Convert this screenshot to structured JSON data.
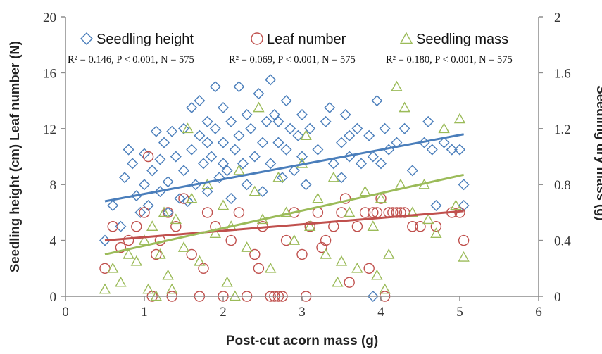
{
  "chart_data": {
    "type": "scatter",
    "title": "",
    "xlabel": "Post-cut acorn mass (g)",
    "ylabel_left": "Seedling height (cm) Leaf number (N)",
    "ylabel_right": "Seedling dry mass (g)",
    "xlim": [
      0,
      6
    ],
    "ylim_left": [
      0,
      20
    ],
    "ylim_right": [
      0,
      2
    ],
    "x_ticks": [
      "0",
      "1",
      "2",
      "3",
      "4",
      "5",
      "6"
    ],
    "y_left_ticks": [
      "0",
      "4",
      "8",
      "12",
      "16",
      "20"
    ],
    "y_right_ticks": [
      "0",
      "0.4",
      "0.8",
      "1.2",
      "1.6",
      "2"
    ],
    "legend_position": "top",
    "series": [
      {
        "name": "Seedling height",
        "axis": "left",
        "marker": "diamond",
        "color": "#4a7ebb",
        "stats": "R² = 0.146, P < 0.001, N = 575",
        "trend": {
          "x0": 0.5,
          "y0": 6.8,
          "x1": 5.05,
          "y1": 11.6
        },
        "points": [
          [
            0.5,
            4.0
          ],
          [
            0.6,
            6.5
          ],
          [
            0.7,
            5.0
          ],
          [
            0.75,
            8.5
          ],
          [
            0.8,
            10.5
          ],
          [
            0.85,
            9.5
          ],
          [
            0.9,
            7.2
          ],
          [
            0.95,
            6.0
          ],
          [
            1.0,
            10.2
          ],
          [
            1.0,
            8.0
          ],
          [
            1.05,
            6.5
          ],
          [
            1.1,
            9.0
          ],
          [
            1.15,
            11.8
          ],
          [
            1.2,
            7.5
          ],
          [
            1.2,
            9.8
          ],
          [
            1.25,
            11.0
          ],
          [
            1.3,
            8.2
          ],
          [
            1.35,
            11.8
          ],
          [
            1.4,
            10.0
          ],
          [
            1.45,
            7.0
          ],
          [
            1.5,
            12.0
          ],
          [
            1.5,
            9.0
          ],
          [
            1.55,
            6.8
          ],
          [
            1.6,
            13.5
          ],
          [
            1.6,
            10.5
          ],
          [
            1.65,
            8.0
          ],
          [
            1.7,
            14.0
          ],
          [
            1.7,
            11.5
          ],
          [
            1.75,
            9.5
          ],
          [
            1.8,
            12.5
          ],
          [
            1.8,
            7.5
          ],
          [
            1.85,
            10.0
          ],
          [
            1.9,
            15.0
          ],
          [
            1.9,
            12.0
          ],
          [
            1.95,
            8.5
          ],
          [
            2.0,
            13.5
          ],
          [
            2.0,
            11.0
          ],
          [
            2.05,
            9.0
          ],
          [
            2.1,
            12.5
          ],
          [
            2.1,
            7.0
          ],
          [
            2.15,
            10.5
          ],
          [
            2.2,
            15.0
          ],
          [
            2.2,
            11.5
          ],
          [
            2.25,
            9.5
          ],
          [
            2.3,
            13.0
          ],
          [
            2.3,
            8.0
          ],
          [
            2.35,
            12.0
          ],
          [
            2.4,
            10.0
          ],
          [
            2.45,
            14.5
          ],
          [
            2.5,
            11.0
          ],
          [
            2.5,
            7.5
          ],
          [
            2.55,
            12.5
          ],
          [
            2.6,
            15.5
          ],
          [
            2.6,
            9.5
          ],
          [
            2.65,
            13.0
          ],
          [
            2.7,
            11.0
          ],
          [
            2.75,
            8.5
          ],
          [
            2.8,
            14.0
          ],
          [
            2.8,
            10.5
          ],
          [
            2.85,
            12.0
          ],
          [
            2.9,
            9.0
          ],
          [
            2.95,
            11.5
          ],
          [
            3.0,
            13.0
          ],
          [
            3.0,
            10.0
          ],
          [
            3.05,
            8.0
          ],
          [
            3.1,
            12.0
          ],
          [
            3.2,
            10.5
          ],
          [
            3.3,
            12.5
          ],
          [
            3.35,
            13.5
          ],
          [
            3.4,
            9.5
          ],
          [
            3.5,
            11.0
          ],
          [
            3.55,
            13.0
          ],
          [
            3.6,
            10.0
          ],
          [
            3.7,
            12.0
          ],
          [
            3.75,
            9.5
          ],
          [
            3.85,
            11.5
          ],
          [
            3.9,
            10.0
          ],
          [
            3.95,
            14.0
          ],
          [
            4.0,
            9.5
          ],
          [
            4.05,
            12.0
          ],
          [
            4.1,
            10.5
          ],
          [
            4.2,
            11.0
          ],
          [
            4.3,
            12.0
          ],
          [
            4.4,
            9.0
          ],
          [
            4.55,
            11.0
          ],
          [
            4.6,
            12.5
          ],
          [
            4.65,
            10.5
          ],
          [
            4.7,
            6.5
          ],
          [
            4.8,
            11.0
          ],
          [
            4.9,
            10.5
          ],
          [
            5.0,
            10.5
          ],
          [
            5.05,
            8.0
          ],
          [
            5.05,
            6.5
          ],
          [
            3.9,
            0.0
          ],
          [
            3.5,
            8.5
          ],
          [
            2.0,
            9.5
          ],
          [
            1.3,
            6.0
          ],
          [
            1.8,
            11.0
          ],
          [
            2.7,
            12.5
          ],
          [
            3.6,
            11.5
          ]
        ]
      },
      {
        "name": "Leaf number",
        "axis": "left",
        "marker": "circle",
        "color": "#c0504d",
        "stats": "R² = 0.069, P < 0.001, N = 575",
        "trend": {
          "x0": 0.5,
          "y0": 4.0,
          "x1": 5.05,
          "y1": 6.1
        },
        "points": [
          [
            0.5,
            2.0
          ],
          [
            0.6,
            5.0
          ],
          [
            0.7,
            3.5
          ],
          [
            0.8,
            4.0
          ],
          [
            0.9,
            5.0
          ],
          [
            1.0,
            6.0
          ],
          [
            1.05,
            10.0
          ],
          [
            1.1,
            0.0
          ],
          [
            1.15,
            3.0
          ],
          [
            1.2,
            4.0
          ],
          [
            1.3,
            6.0
          ],
          [
            1.35,
            0.0
          ],
          [
            1.4,
            5.0
          ],
          [
            1.5,
            7.0
          ],
          [
            1.6,
            3.0
          ],
          [
            1.7,
            0.0
          ],
          [
            1.8,
            6.0
          ],
          [
            1.9,
            5.0
          ],
          [
            2.0,
            0.0
          ],
          [
            2.1,
            4.0
          ],
          [
            2.2,
            6.0
          ],
          [
            2.3,
            0.0
          ],
          [
            2.4,
            3.0
          ],
          [
            2.5,
            5.0
          ],
          [
            2.6,
            0.0
          ],
          [
            2.65,
            0.0
          ],
          [
            2.7,
            0.0
          ],
          [
            2.75,
            0.0
          ],
          [
            2.8,
            4.0
          ],
          [
            2.9,
            6.0
          ],
          [
            3.0,
            3.0
          ],
          [
            3.05,
            0.0
          ],
          [
            3.1,
            5.0
          ],
          [
            3.2,
            6.0
          ],
          [
            3.3,
            4.0
          ],
          [
            3.4,
            5.0
          ],
          [
            3.5,
            6.0
          ],
          [
            3.55,
            7.0
          ],
          [
            3.6,
            1.0
          ],
          [
            3.7,
            5.0
          ],
          [
            3.8,
            6.0
          ],
          [
            3.85,
            2.0
          ],
          [
            3.9,
            6.0
          ],
          [
            4.0,
            7.0
          ],
          [
            4.05,
            0.0
          ],
          [
            4.1,
            6.0
          ],
          [
            4.2,
            6.0
          ],
          [
            4.25,
            6.0
          ],
          [
            4.3,
            6.0
          ],
          [
            4.4,
            5.0
          ],
          [
            4.5,
            5.0
          ],
          [
            4.7,
            5.0
          ],
          [
            4.9,
            6.0
          ],
          [
            5.0,
            6.0
          ],
          [
            5.05,
            4.0
          ],
          [
            3.95,
            6.0
          ],
          [
            4.15,
            6.0
          ],
          [
            2.45,
            2.0
          ],
          [
            1.75,
            2.0
          ],
          [
            3.25,
            3.5
          ]
        ]
      },
      {
        "name": "Seedling mass",
        "axis": "right",
        "marker": "triangle",
        "color": "#9bbb59",
        "stats": "R² = 0.180, P < 0.001, N = 575",
        "trend": {
          "x0": 0.5,
          "y0": 0.3,
          "x1": 5.05,
          "y1": 0.87
        },
        "points": [
          [
            0.5,
            0.05
          ],
          [
            0.6,
            0.2
          ],
          [
            0.7,
            0.1
          ],
          [
            0.8,
            0.3
          ],
          [
            0.9,
            0.25
          ],
          [
            1.0,
            0.4
          ],
          [
            1.05,
            0.05
          ],
          [
            1.1,
            0.5
          ],
          [
            1.2,
            0.3
          ],
          [
            1.25,
            0.6
          ],
          [
            1.3,
            0.15
          ],
          [
            1.4,
            0.55
          ],
          [
            1.5,
            0.35
          ],
          [
            1.55,
            1.2
          ],
          [
            1.6,
            0.7
          ],
          [
            1.7,
            0.25
          ],
          [
            1.8,
            0.8
          ],
          [
            1.9,
            0.45
          ],
          [
            2.0,
            0.65
          ],
          [
            2.05,
            0.1
          ],
          [
            2.1,
            0.5
          ],
          [
            2.2,
            0.9
          ],
          [
            2.3,
            0.35
          ],
          [
            2.4,
            0.75
          ],
          [
            2.45,
            1.35
          ],
          [
            2.5,
            0.55
          ],
          [
            2.6,
            0.2
          ],
          [
            2.7,
            0.85
          ],
          [
            2.8,
            0.6
          ],
          [
            2.9,
            0.4
          ],
          [
            3.0,
            0.95
          ],
          [
            3.05,
            1.15
          ],
          [
            3.1,
            0.5
          ],
          [
            3.2,
            0.7
          ],
          [
            3.3,
            0.3
          ],
          [
            3.4,
            0.85
          ],
          [
            3.5,
            0.25
          ],
          [
            3.6,
            0.6
          ],
          [
            3.7,
            0.2
          ],
          [
            3.8,
            0.75
          ],
          [
            3.9,
            0.5
          ],
          [
            3.95,
            0.15
          ],
          [
            4.0,
            0.7
          ],
          [
            4.1,
            0.3
          ],
          [
            4.2,
            1.5
          ],
          [
            4.25,
            0.8
          ],
          [
            4.3,
            1.35
          ],
          [
            4.4,
            0.6
          ],
          [
            4.55,
            0.8
          ],
          [
            4.7,
            0.45
          ],
          [
            4.8,
            1.2
          ],
          [
            4.95,
            0.65
          ],
          [
            5.0,
            1.27
          ],
          [
            5.05,
            0.28
          ],
          [
            4.6,
            0.55
          ],
          [
            1.15,
            0.0
          ],
          [
            1.35,
            0.05
          ],
          [
            2.15,
            0.0
          ],
          [
            3.45,
            0.1
          ],
          [
            4.05,
            0.05
          ]
        ]
      }
    ]
  }
}
